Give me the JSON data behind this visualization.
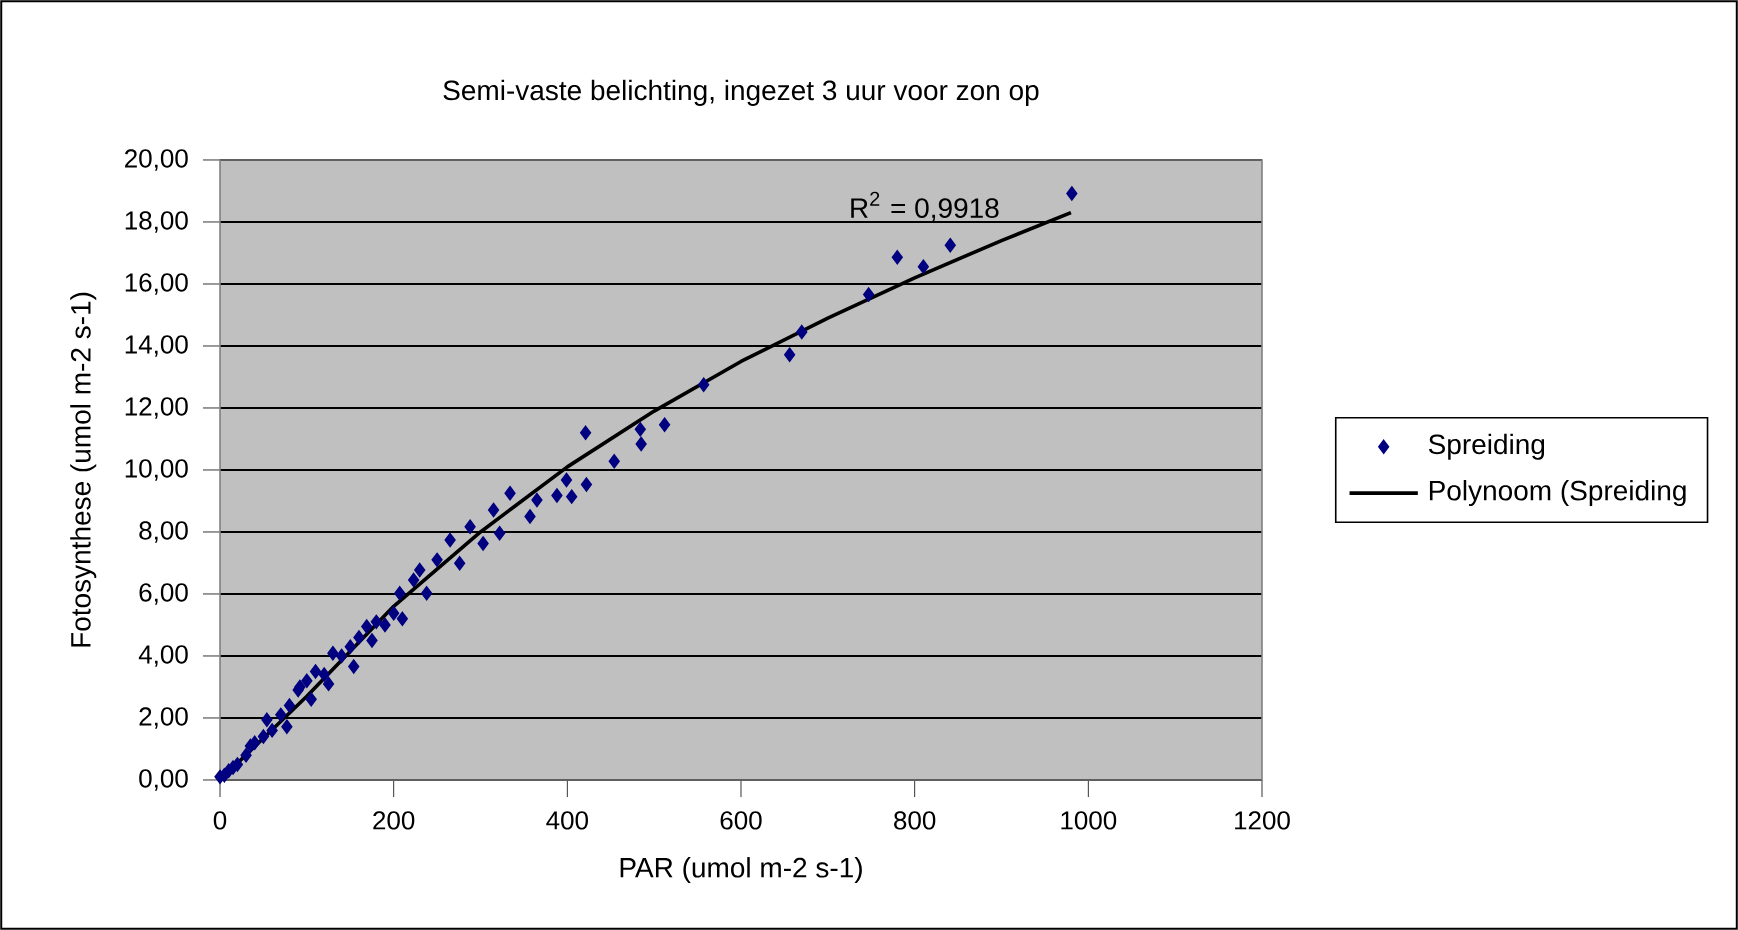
{
  "chart_data": {
    "type": "scatter",
    "title": "Semi-vaste belichting, ingezet 3 uur voor zon op",
    "xlabel": "PAR (umol m-2 s-1)",
    "ylabel": "Fotosynthese (umol m-2 s-1)",
    "xlim": [
      0,
      1200
    ],
    "ylim": [
      0,
      20
    ],
    "xticks": [
      0,
      200,
      400,
      600,
      800,
      1000,
      1200
    ],
    "yticks": [
      {
        "value": 0,
        "label": "0,00"
      },
      {
        "value": 2,
        "label": "2,00"
      },
      {
        "value": 4,
        "label": "4,00"
      },
      {
        "value": 6,
        "label": "6,00"
      },
      {
        "value": 8,
        "label": "8,00"
      },
      {
        "value": 10,
        "label": "10,00"
      },
      {
        "value": 12,
        "label": "12,00"
      },
      {
        "value": 14,
        "label": "14,00"
      },
      {
        "value": 16,
        "label": "16,00"
      },
      {
        "value": 18,
        "label": "18,00"
      },
      {
        "value": 20,
        "label": "20,00"
      }
    ],
    "grid": "y",
    "legend": "right",
    "marker": "diamond",
    "series": [
      {
        "name": "Spreiding",
        "color": "#000080",
        "x": [
          0,
          5,
          10,
          15,
          20,
          30,
          35,
          40,
          50,
          54,
          60,
          70,
          77,
          80,
          90,
          92,
          100,
          105,
          110,
          120,
          125,
          130,
          140,
          150,
          154,
          160,
          169,
          175,
          180,
          190,
          200,
          207,
          210,
          223,
          230,
          238,
          250,
          265,
          276,
          288,
          303,
          315,
          322,
          334,
          357,
          365,
          388,
          399,
          405,
          421,
          422,
          454,
          484,
          485,
          512,
          557,
          656,
          670,
          747,
          780,
          810,
          841,
          981
        ],
        "values": [
          0.1,
          0.15,
          0.3,
          0.4,
          0.5,
          0.8,
          1.1,
          1.2,
          1.4,
          1.94,
          1.6,
          2.1,
          1.72,
          2.4,
          2.9,
          3.0,
          3.2,
          2.6,
          3.5,
          3.4,
          3.1,
          4.09,
          4.0,
          4.3,
          3.66,
          4.6,
          4.95,
          4.5,
          5.1,
          5.0,
          5.38,
          6.02,
          5.2,
          6.45,
          6.77,
          6.02,
          7.1,
          7.74,
          6.99,
          8.17,
          7.63,
          8.71,
          7.96,
          9.25,
          8.5,
          9.03,
          9.18,
          9.68,
          9.14,
          11.2,
          9.53,
          10.28,
          11.31,
          10.84,
          11.46,
          12.75,
          13.72,
          14.45,
          15.66,
          16.86,
          16.56,
          17.25,
          18.92
        ]
      },
      {
        "name": "Polynoom (Spreiding",
        "color": "#000000",
        "type": "line",
        "marker": "none",
        "x": [
          0,
          100,
          200,
          300,
          400,
          500,
          600,
          700,
          800,
          900,
          980
        ],
        "values": [
          0,
          2.7,
          5.6,
          8.0,
          10.1,
          11.9,
          13.5,
          14.9,
          16.2,
          17.4,
          18.3
        ]
      }
    ],
    "annotations": [
      "R$^{2}$ = 0,9918"
    ]
  }
}
